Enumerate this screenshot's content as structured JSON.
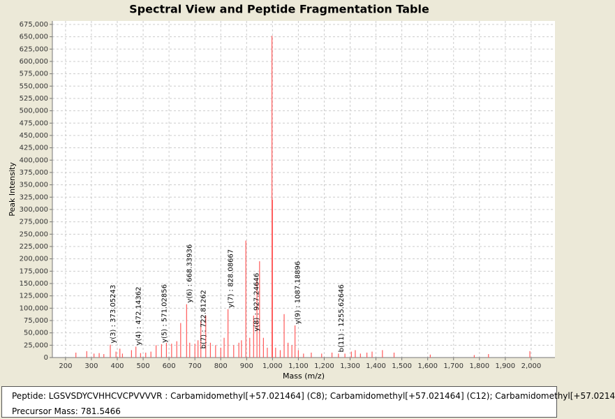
{
  "chart_data": {
    "type": "stick",
    "title": "Spectral View and Peptide Fragmentation Table",
    "x_label": "Mass (m/z)",
    "y_label": "Peak Intensity",
    "color": "#ff5a5a",
    "grid": true,
    "xlim": [
      149,
      2092
    ],
    "ylim": [
      0,
      682000
    ],
    "xticks": [
      200,
      300,
      400,
      500,
      600,
      700,
      800,
      900,
      {
        "value": 1000,
        "label": "1,000"
      },
      {
        "value": 1100,
        "label": "1,100"
      },
      {
        "value": 1200,
        "label": "1,200"
      },
      {
        "value": 1300,
        "label": "1,300"
      },
      {
        "value": 1400,
        "label": "1,400"
      },
      {
        "value": 1500,
        "label": "1,500"
      },
      {
        "value": 1600,
        "label": "1,600"
      },
      {
        "value": 1700,
        "label": "1,700"
      },
      {
        "value": 1800,
        "label": "1,800"
      },
      {
        "value": 1900,
        "label": "1,900"
      },
      {
        "value": 2000,
        "label": "2,000"
      }
    ],
    "yticks": [
      0,
      {
        "value": 25000,
        "label": "25,000"
      },
      {
        "value": 50000,
        "label": "50,000"
      },
      {
        "value": 75000,
        "label": "75,000"
      },
      {
        "value": 100000,
        "label": "100,000"
      },
      {
        "value": 125000,
        "label": "125,000"
      },
      {
        "value": 150000,
        "label": "150,000"
      },
      {
        "value": 175000,
        "label": "175,000"
      },
      {
        "value": 200000,
        "label": "200,000"
      },
      {
        "value": 225000,
        "label": "225,000"
      },
      {
        "value": 250000,
        "label": "250,000"
      },
      {
        "value": 275000,
        "label": "275,000"
      },
      {
        "value": 300000,
        "label": "300,000"
      },
      {
        "value": 325000,
        "label": "325,000"
      },
      {
        "value": 350000,
        "label": "350,000"
      },
      {
        "value": 375000,
        "label": "375,000"
      },
      {
        "value": 400000,
        "label": "400,000"
      },
      {
        "value": 425000,
        "label": "425,000"
      },
      {
        "value": 450000,
        "label": "450,000"
      },
      {
        "value": 475000,
        "label": "475,000"
      },
      {
        "value": 500000,
        "label": "500,000"
      },
      {
        "value": 525000,
        "label": "525,000"
      },
      {
        "value": 550000,
        "label": "550,000"
      },
      {
        "value": 575000,
        "label": "575,000"
      },
      {
        "value": 600000,
        "label": "600,000"
      },
      {
        "value": 625000,
        "label": "625,000"
      },
      {
        "value": 650000,
        "label": "650,000"
      },
      {
        "value": 675000,
        "label": "675,000"
      }
    ],
    "x": [
      240,
      282,
      310,
      330,
      348,
      373,
      395,
      410,
      420,
      455,
      472,
      490,
      510,
      530,
      550,
      571,
      590,
      610,
      630,
      645,
      668,
      680,
      700,
      712,
      723,
      742,
      760,
      780,
      800,
      813,
      828,
      850,
      870,
      880,
      897,
      912,
      927,
      940,
      950,
      965,
      980,
      998,
      1000,
      1012,
      1030,
      1045,
      1060,
      1075,
      1087,
      1100,
      1120,
      1150,
      1190,
      1230,
      1255,
      1280,
      1305,
      1320,
      1340,
      1365,
      1385,
      1425,
      1470,
      1610,
      1780,
      1835,
      1995
    ],
    "values": [
      10000,
      13000,
      8000,
      9000,
      7000,
      26000,
      12000,
      18000,
      8000,
      15000,
      22000,
      9000,
      10000,
      12000,
      25000,
      27000,
      30000,
      28000,
      33000,
      70000,
      108000,
      30000,
      28000,
      35000,
      75000,
      85000,
      30000,
      25000,
      20000,
      40000,
      98000,
      25000,
      30000,
      35000,
      237000,
      40000,
      85000,
      160000,
      195000,
      40000,
      20000,
      652000,
      320000,
      20000,
      15000,
      88000,
      30000,
      25000,
      65000,
      15000,
      8000,
      10000,
      8000,
      10000,
      8000,
      8000,
      12000,
      15000,
      8000,
      10000,
      12000,
      15000,
      10000,
      6000,
      5000,
      7000,
      13000
    ],
    "annotations": [
      {
        "text": "y(3) : 373.05243",
        "x": 373.05243,
        "y": 26000
      },
      {
        "text": "y(4) : 472.14362",
        "x": 472.14362,
        "y": 22000
      },
      {
        "text": "y(5) : 571.02856",
        "x": 571.02856,
        "y": 27000
      },
      {
        "text": "y(6) : 668.33936",
        "x": 668.33936,
        "y": 108000
      },
      {
        "text": "b(7) : 722.81262",
        "x": 722.81262,
        "y": 15000
      },
      {
        "text": "y(7) : 828.08667",
        "x": 828.08667,
        "y": 98000
      },
      {
        "text": "y(8) : 927.24646",
        "x": 927.24646,
        "y": 50000
      },
      {
        "text": "y(9) : 1087.18896",
        "x": 1087.18896,
        "y": 65000
      },
      {
        "text": "b(11) : 1255.62646",
        "x": 1255.62646,
        "y": 8000
      }
    ]
  },
  "info": {
    "peptide": "Peptide: LGSVSDYCVHHCVCPVVVVR : Carbamidomethyl[+57.021464] (C8); Carbamidomethyl[+57.021464] (C12); Carbamidomethyl[+57.0214",
    "precursor": "Precursor Mass: 781.5466"
  }
}
